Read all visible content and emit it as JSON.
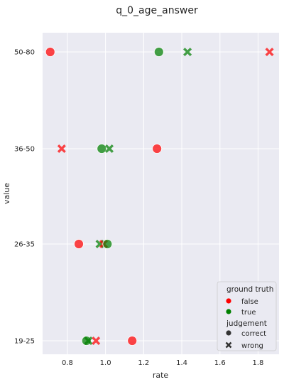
{
  "chart_data": {
    "type": "scatter",
    "title": "q_0_age_answer",
    "xlabel": "rate",
    "ylabel": "value",
    "categories": [
      "19-25",
      "26-35",
      "36-50",
      "50-80"
    ],
    "xlim": [
      0.67,
      1.91
    ],
    "x_ticks": [
      0.8,
      1.0,
      1.2,
      1.4,
      1.6,
      1.8
    ],
    "x_tick_labels": [
      "0.8",
      "1.0",
      "1.2",
      "1.4",
      "1.6",
      "1.8"
    ],
    "grid": true,
    "legend_position": "bottom-right",
    "hue": {
      "title": "ground truth",
      "entries": [
        {
          "label": "false",
          "color": "#ff0000"
        },
        {
          "label": "true",
          "color": "#008000"
        }
      ]
    },
    "style": {
      "title": "judgement",
      "entries": [
        {
          "label": "correct",
          "marker": "circle"
        },
        {
          "label": "wrong",
          "marker": "x"
        }
      ]
    },
    "points": [
      {
        "category": "50-80",
        "x": 0.71,
        "ground_truth": "false",
        "judgement": "correct"
      },
      {
        "category": "50-80",
        "x": 1.28,
        "ground_truth": "true",
        "judgement": "correct"
      },
      {
        "category": "50-80",
        "x": 1.43,
        "ground_truth": "true",
        "judgement": "wrong"
      },
      {
        "category": "50-80",
        "x": 1.86,
        "ground_truth": "false",
        "judgement": "wrong"
      },
      {
        "category": "36-50",
        "x": 0.77,
        "ground_truth": "false",
        "judgement": "wrong"
      },
      {
        "category": "36-50",
        "x": 0.98,
        "ground_truth": "true",
        "judgement": "correct"
      },
      {
        "category": "36-50",
        "x": 1.02,
        "ground_truth": "true",
        "judgement": "wrong"
      },
      {
        "category": "36-50",
        "x": 1.27,
        "ground_truth": "false",
        "judgement": "correct"
      },
      {
        "category": "26-35",
        "x": 0.86,
        "ground_truth": "false",
        "judgement": "correct"
      },
      {
        "category": "26-35",
        "x": 0.97,
        "ground_truth": "true",
        "judgement": "wrong"
      },
      {
        "category": "26-35",
        "x": 0.99,
        "ground_truth": "false",
        "judgement": "wrong"
      },
      {
        "category": "26-35",
        "x": 1.01,
        "ground_truth": "true",
        "judgement": "correct"
      },
      {
        "category": "19-25",
        "x": 0.9,
        "ground_truth": "true",
        "judgement": "correct"
      },
      {
        "category": "19-25",
        "x": 0.91,
        "ground_truth": "true",
        "judgement": "wrong"
      },
      {
        "category": "19-25",
        "x": 0.95,
        "ground_truth": "false",
        "judgement": "wrong"
      },
      {
        "category": "19-25",
        "x": 1.14,
        "ground_truth": "false",
        "judgement": "correct"
      }
    ],
    "colors": {
      "plot_background": "#eaeaf2",
      "grid": "#ffffff",
      "false": "#ff0000",
      "true": "#008000",
      "legend_background": "#eaeaf2"
    }
  }
}
